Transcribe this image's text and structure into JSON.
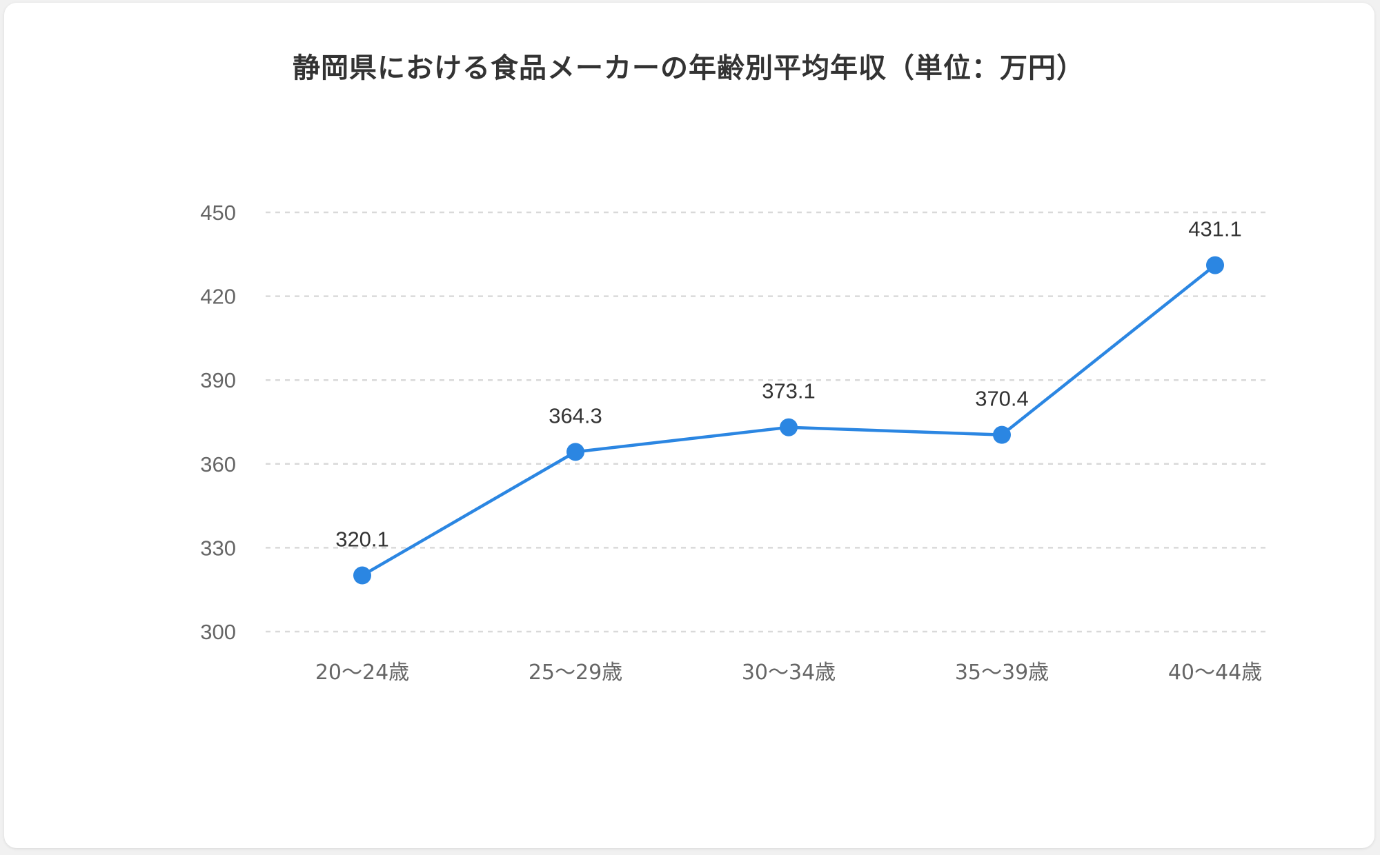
{
  "chart_data": {
    "type": "line",
    "title": "静岡県における食品メーカーの年齢別平均年収（単位：万円）",
    "xlabel": "",
    "ylabel": "",
    "categories": [
      "20～24歳",
      "25～29歳",
      "30～34歳",
      "35～39歳",
      "40～44歳"
    ],
    "values": [
      320.1,
      364.3,
      373.1,
      370.4,
      431.1
    ],
    "data_labels": [
      "320.1",
      "364.3",
      "373.1",
      "370.4",
      "431.1"
    ],
    "ylim": [
      300,
      450
    ],
    "yticks": [
      300,
      330,
      360,
      390,
      420,
      450
    ],
    "grid": true,
    "grid_style": "dashed",
    "legend": "none",
    "colors": {
      "line": "#2b86e2",
      "grid": "#d9d9d9"
    }
  }
}
